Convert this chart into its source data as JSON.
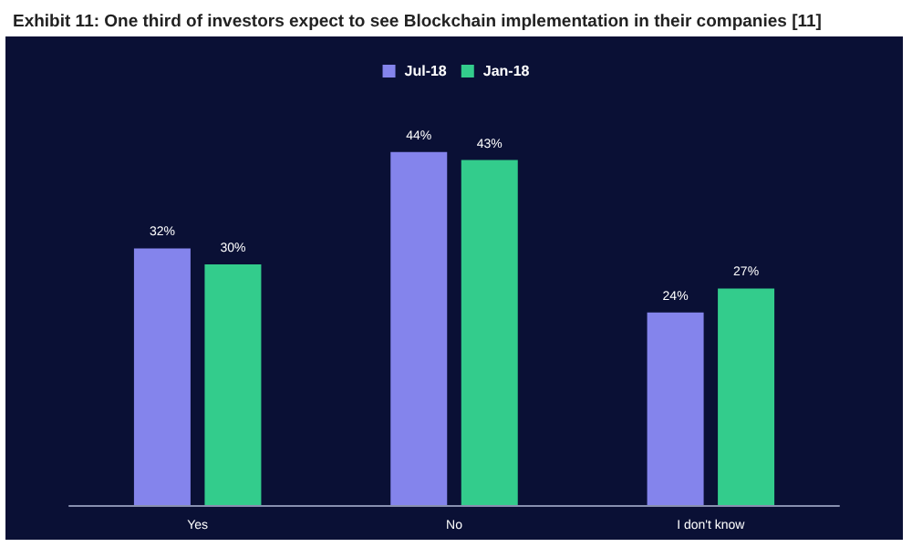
{
  "chart_data": {
    "type": "bar",
    "title": "Exhibit 11: One third of investors expect to see Blockchain implementation in their companies [11]",
    "categories": [
      "Yes",
      "No",
      "I don't know"
    ],
    "legend": "top",
    "series": [
      {
        "name": "Jul-18",
        "color": "#8484ec",
        "values": [
          32,
          44,
          24
        ],
        "value_labels": [
          "32%",
          "44%",
          "24%"
        ]
      },
      {
        "name": "Jan-18",
        "color": "#33cc8c",
        "values": [
          30,
          43,
          27
        ],
        "value_labels": [
          "30%",
          "43%",
          "27%"
        ]
      }
    ]
  }
}
